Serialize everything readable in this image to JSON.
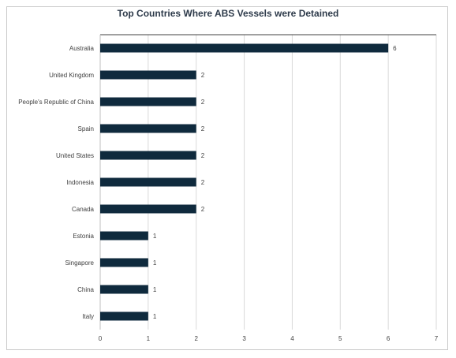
{
  "chart_data": {
    "type": "bar",
    "orientation": "horizontal",
    "title": "Top Countries Where ABS Vessels were Detained",
    "categories": [
      "Australia",
      "United Kingdom",
      "People's Republic of China",
      "Spain",
      "United States",
      "Indonesia",
      "Canada",
      "Estonia",
      "Singapore",
      "China",
      "Italy"
    ],
    "values": [
      6,
      2,
      2,
      2,
      2,
      2,
      2,
      1,
      1,
      1,
      1
    ],
    "xlim": [
      0,
      7
    ],
    "x_ticks": [
      0,
      1,
      2,
      3,
      4,
      5,
      6,
      7
    ],
    "grid": "vertical",
    "bar_color": "#0f2a3d",
    "data_labels": true
  }
}
